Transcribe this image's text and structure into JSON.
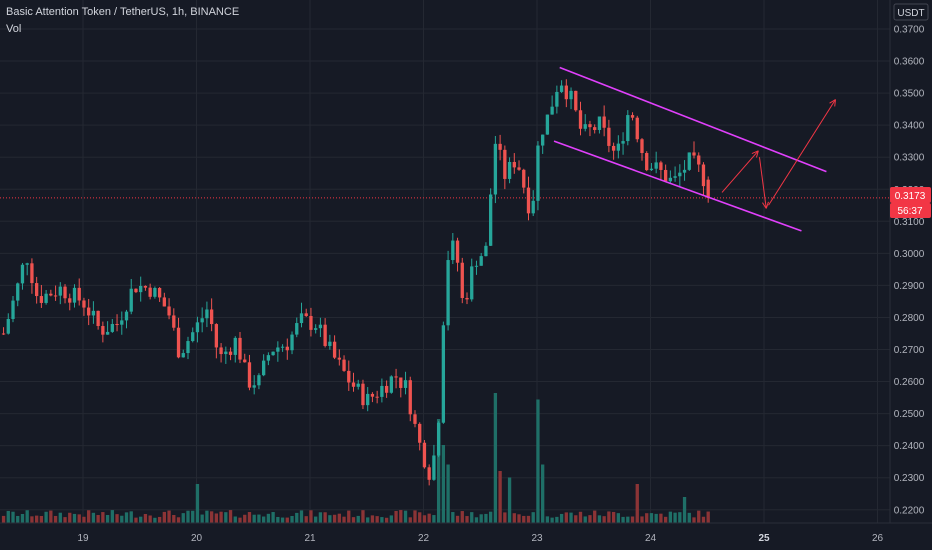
{
  "header": {
    "title": "Basic Attention Token / TetherUS, 1h, BINANCE",
    "indicator": "Vol"
  },
  "axis": {
    "currency": "USDT",
    "price_label": "0.3173",
    "countdown_label": "56:37"
  },
  "colors": {
    "bg": "#161a25",
    "grid": "#242832",
    "text": "#b2b5be",
    "up": "#26a69a",
    "down": "#ef5350",
    "up_vol": "#1f6f67",
    "down_vol": "#8c3436",
    "channel": "#e040fb",
    "arrow": "#f23645"
  },
  "chart_data": {
    "type": "candlestick",
    "symbol": "BATUSDT",
    "interval": "1h",
    "ylim": [
      0.216,
      0.373
    ],
    "y_ticks": [
      "0.2200",
      "0.2300",
      "0.2400",
      "0.2500",
      "0.2600",
      "0.2700",
      "0.2800",
      "0.2900",
      "0.3000",
      "0.3100",
      "0.3200",
      "0.3300",
      "0.3400",
      "0.3500",
      "0.3600",
      "0.3700"
    ],
    "x_ticks": [
      "19",
      "20",
      "21",
      "22",
      "23",
      "24",
      "25",
      "26"
    ],
    "last_price": 0.3173,
    "candles": [
      {
        "day": 18.3,
        "o": 0.285,
        "c": 0.275,
        "h": 0.287,
        "l": 0.272,
        "v": 3
      }
    ],
    "anchors": [
      {
        "day": 18.3,
        "p": 0.275
      },
      {
        "day": 18.42,
        "p": 0.289
      },
      {
        "day": 18.5,
        "p": 0.3
      },
      {
        "day": 18.6,
        "p": 0.286
      },
      {
        "day": 18.8,
        "p": 0.289
      },
      {
        "day": 19.0,
        "p": 0.285
      },
      {
        "day": 19.15,
        "p": 0.276
      },
      {
        "day": 19.3,
        "p": 0.278
      },
      {
        "day": 19.45,
        "p": 0.29
      },
      {
        "day": 19.6,
        "p": 0.289
      },
      {
        "day": 19.75,
        "p": 0.282
      },
      {
        "day": 19.85,
        "p": 0.269
      },
      {
        "day": 20.0,
        "p": 0.277
      },
      {
        "day": 20.1,
        "p": 0.283
      },
      {
        "day": 20.2,
        "p": 0.267
      },
      {
        "day": 20.35,
        "p": 0.273
      },
      {
        "day": 20.45,
        "p": 0.26
      },
      {
        "day": 20.55,
        "p": 0.26
      },
      {
        "day": 20.65,
        "p": 0.27
      },
      {
        "day": 20.8,
        "p": 0.272
      },
      {
        "day": 20.92,
        "p": 0.279
      },
      {
        "day": 21.05,
        "p": 0.278
      },
      {
        "day": 21.2,
        "p": 0.268
      },
      {
        "day": 21.35,
        "p": 0.26
      },
      {
        "day": 21.5,
        "p": 0.254
      },
      {
        "day": 21.6,
        "p": 0.257
      },
      {
        "day": 21.75,
        "p": 0.262
      },
      {
        "day": 21.85,
        "p": 0.258
      },
      {
        "day": 21.95,
        "p": 0.242
      },
      {
        "day": 22.05,
        "p": 0.232
      },
      {
        "day": 22.12,
        "p": 0.24
      },
      {
        "day": 22.2,
        "p": 0.298
      },
      {
        "day": 22.28,
        "p": 0.303
      },
      {
        "day": 22.35,
        "p": 0.283
      },
      {
        "day": 22.45,
        "p": 0.298
      },
      {
        "day": 22.55,
        "p": 0.301
      },
      {
        "day": 22.63,
        "p": 0.335
      },
      {
        "day": 22.72,
        "p": 0.324
      },
      {
        "day": 22.82,
        "p": 0.33
      },
      {
        "day": 22.95,
        "p": 0.312
      },
      {
        "day": 23.02,
        "p": 0.337
      },
      {
        "day": 23.1,
        "p": 0.343
      },
      {
        "day": 23.2,
        "p": 0.355
      },
      {
        "day": 23.3,
        "p": 0.348
      },
      {
        "day": 23.4,
        "p": 0.337
      },
      {
        "day": 23.55,
        "p": 0.34
      },
      {
        "day": 23.7,
        "p": 0.33
      },
      {
        "day": 23.82,
        "p": 0.346
      },
      {
        "day": 23.95,
        "p": 0.329
      },
      {
        "day": 24.1,
        "p": 0.325
      },
      {
        "day": 24.2,
        "p": 0.322
      },
      {
        "day": 24.35,
        "p": 0.329
      },
      {
        "day": 24.45,
        "p": 0.325
      },
      {
        "day": 24.53,
        "p": 0.3173
      }
    ],
    "volume_spikes": [
      {
        "day": 20.0,
        "v": 30
      },
      {
        "day": 22.12,
        "v": 80
      },
      {
        "day": 22.18,
        "v": 60
      },
      {
        "day": 22.2,
        "v": 45
      },
      {
        "day": 22.63,
        "v": 100
      },
      {
        "day": 22.68,
        "v": 40
      },
      {
        "day": 22.75,
        "v": 35
      },
      {
        "day": 23.0,
        "v": 95
      },
      {
        "day": 23.05,
        "v": 45
      },
      {
        "day": 23.9,
        "v": 30
      },
      {
        "day": 24.3,
        "v": 20
      }
    ],
    "drawings": {
      "channel": [
        {
          "from": {
            "day": 23.2,
            "p": 0.358
          },
          "to": {
            "day": 25.55,
            "p": 0.3255
          }
        },
        {
          "from": {
            "day": 23.15,
            "p": 0.335
          },
          "to": {
            "day": 25.33,
            "p": 0.307
          }
        }
      ],
      "arrows": [
        {
          "from": {
            "day": 24.63,
            "p": 0.319
          },
          "to": {
            "day": 24.95,
            "p": 0.332
          }
        },
        {
          "from": {
            "day": 24.96,
            "p": 0.33
          },
          "to": {
            "day": 25.02,
            "p": 0.314
          }
        },
        {
          "from": {
            "day": 25.04,
            "p": 0.315
          },
          "to": {
            "day": 25.63,
            "p": 0.348
          }
        }
      ]
    }
  }
}
